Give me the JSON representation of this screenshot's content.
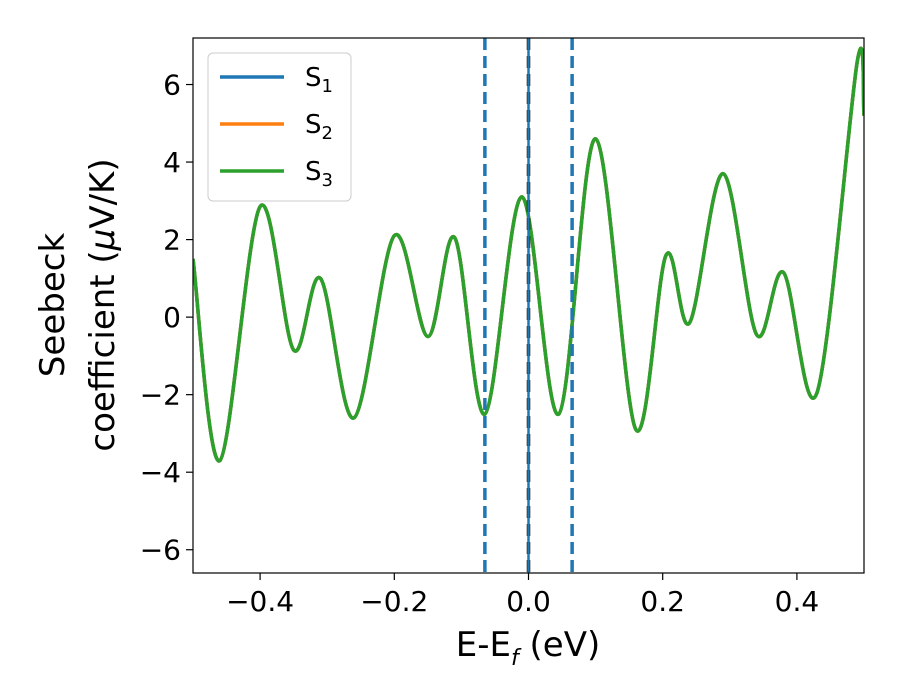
{
  "chart_data": {
    "type": "line",
    "xlabel": "E-E",
    "xlabel_sub": "f",
    "xlabel_unit": " (eV)",
    "ylabel_line1": "Seebeck",
    "ylabel_line2": "coefficient  (",
    "ylabel_mu": "μ",
    "ylabel_unit": "V/K)",
    "xlim": [
      -0.5,
      0.5
    ],
    "ylim": [
      -6.6,
      7.2
    ],
    "x_ticks": [
      -0.4,
      -0.2,
      0.0,
      0.2,
      0.4
    ],
    "x_tick_labels": [
      "−0.4",
      "−0.2",
      "0.0",
      "0.2",
      "0.4"
    ],
    "y_ticks": [
      -6,
      -4,
      -2,
      0,
      2,
      4,
      6
    ],
    "y_tick_labels": [
      "−6",
      "−4",
      "−2",
      "0",
      "2",
      "4",
      "6"
    ],
    "grid": false,
    "legend_placement": "top-left",
    "series": [
      {
        "name": "S",
        "sub": "1",
        "color": "#1f77b4"
      },
      {
        "name": "S",
        "sub": "2",
        "color": "#ff7f0e"
      },
      {
        "name": "S",
        "sub": "3",
        "color": "#2ca02c"
      }
    ],
    "curve": {
      "x": [
        -0.5,
        -0.46,
        -0.4,
        -0.35,
        -0.31,
        -0.26,
        -0.2,
        -0.15,
        -0.11,
        -0.065,
        -0.01,
        0.045,
        0.1,
        0.16,
        0.205,
        0.24,
        0.29,
        0.34,
        0.38,
        0.43,
        0.49,
        0.5
      ],
      "y": [
        1.5,
        -3.7,
        2.85,
        -0.85,
        1.0,
        -2.6,
        2.1,
        -0.5,
        2.05,
        -2.5,
        3.1,
        -2.5,
        4.6,
        -2.9,
        1.6,
        -0.15,
        3.7,
        -0.45,
        1.15,
        -1.95,
        6.6,
        5.2
      ]
    },
    "vlines": [
      {
        "x": -0.065,
        "style": "dashed",
        "color": "#1f77b4"
      },
      {
        "x": 0.065,
        "style": "dashed",
        "color": "#1f77b4"
      },
      {
        "x": 0.0,
        "style": "dashed",
        "color": "#000000"
      },
      {
        "x": 0.0,
        "style": "solid",
        "color": "#1f77b4"
      }
    ]
  }
}
